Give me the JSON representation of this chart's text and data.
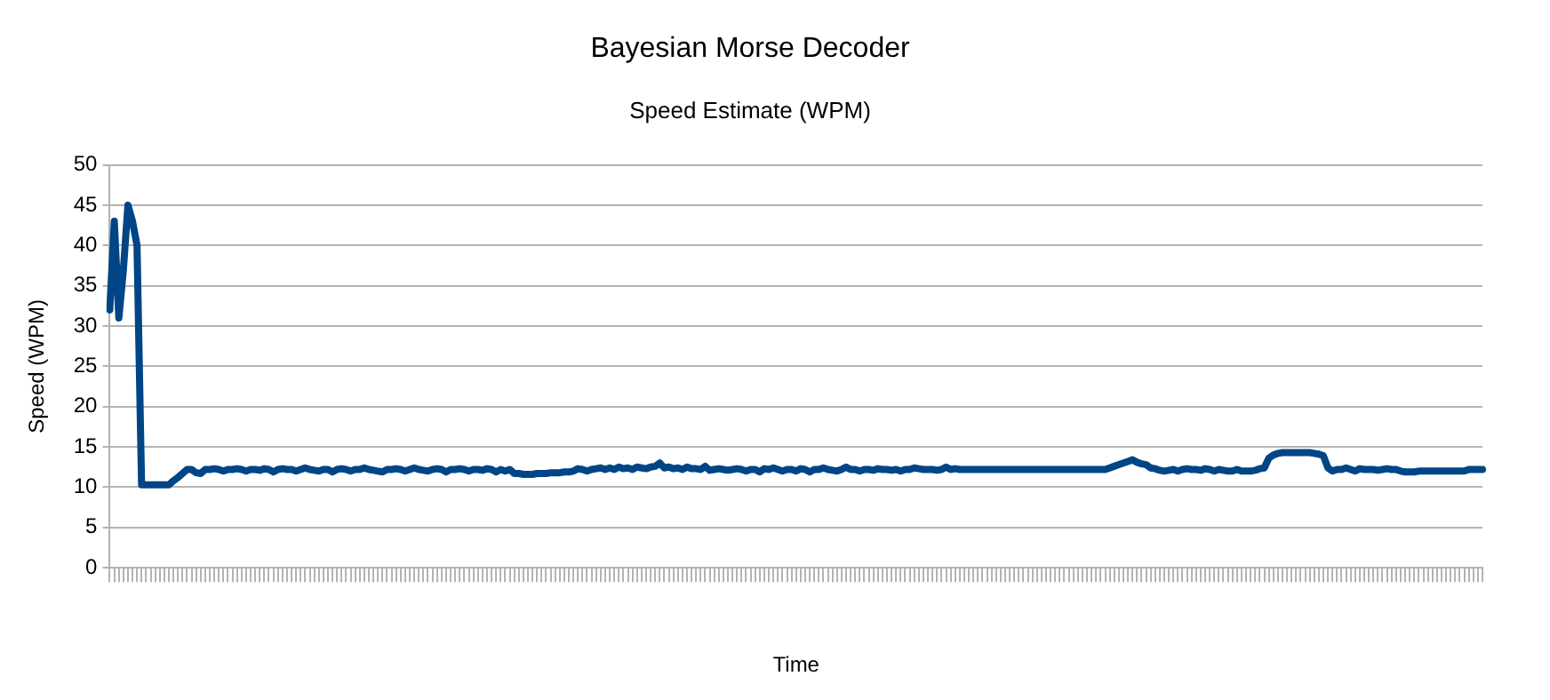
{
  "chart_data": {
    "type": "line",
    "title": "Bayesian Morse Decoder",
    "subtitle": "Speed Estimate (WPM)",
    "xlabel": "Time",
    "ylabel": "Speed (WPM)",
    "categories": [
      null,
      null,
      null,
      null,
      null,
      null,
      null,
      null,
      null,
      null,
      null,
      null,
      null,
      null,
      null,
      null,
      null,
      null,
      null,
      null,
      null,
      null,
      null,
      null,
      null,
      null,
      null,
      null,
      null,
      null,
      null,
      null,
      null,
      null,
      null,
      null,
      null,
      null,
      null,
      null,
      null,
      null,
      null,
      null,
      null,
      null,
      null,
      null,
      null,
      null,
      null,
      null,
      null,
      null,
      null,
      null,
      null,
      null,
      null,
      null,
      null,
      null,
      null,
      null,
      null,
      null,
      null,
      null,
      null,
      null,
      null,
      null,
      null,
      null,
      null,
      null,
      null,
      null,
      null,
      null,
      null,
      null,
      null,
      null,
      null,
      null,
      null,
      null,
      null,
      null,
      null,
      null,
      null,
      null,
      null,
      null,
      null,
      null,
      null,
      null,
      null,
      null,
      null,
      null,
      null,
      null,
      null,
      null,
      null,
      null,
      null,
      null,
      null,
      null,
      null,
      null,
      null,
      null,
      null,
      null,
      null,
      null,
      null,
      null,
      null,
      null,
      null,
      null,
      null,
      null,
      null,
      null,
      null,
      null,
      null,
      null,
      null,
      null,
      null,
      null,
      null,
      null,
      null,
      null,
      null,
      null,
      null,
      null,
      null,
      null,
      null,
      null,
      null,
      null,
      null,
      null,
      null,
      null,
      null,
      null,
      null,
      null,
      null,
      null,
      null,
      null,
      null,
      null,
      null,
      null,
      null,
      null,
      null,
      null,
      null,
      null,
      null,
      null,
      null,
      null,
      null,
      null,
      null,
      null,
      null,
      null,
      null,
      null,
      null,
      null,
      null,
      null,
      null,
      null,
      null,
      null,
      null,
      null,
      null,
      null,
      null,
      null,
      null,
      null,
      null,
      null,
      null,
      null,
      null,
      null,
      null,
      null,
      null,
      null,
      null,
      null,
      null,
      null,
      null,
      null,
      null,
      null,
      null,
      null,
      null,
      null,
      null,
      null,
      null,
      null,
      null,
      null,
      null,
      null,
      null,
      null,
      null,
      null,
      null,
      null,
      null,
      null,
      null,
      null,
      null,
      null,
      null,
      null,
      null,
      null,
      null,
      null,
      null,
      null,
      null,
      null,
      null,
      null,
      null,
      null,
      null,
      null,
      null,
      null,
      null,
      null,
      null,
      null,
      null,
      null,
      null,
      null,
      null,
      null,
      null,
      null,
      null,
      null,
      null,
      null,
      null,
      null,
      null,
      null,
      null,
      null,
      null,
      null,
      null,
      null,
      null,
      null,
      null,
      null,
      null,
      null,
      null,
      null,
      null,
      null,
      null,
      null,
      null
    ],
    "series": [
      {
        "color": "#004586",
        "values": [
          32,
          43,
          31,
          37,
          45,
          43,
          40,
          10.3,
          10.3,
          10.3,
          10.3,
          10.3,
          10.3,
          10.3,
          10.8,
          11.2,
          11.7,
          12.2,
          12.2,
          11.8,
          11.7,
          12.2,
          12.2,
          12.3,
          12.2,
          12,
          12.2,
          12.2,
          12.3,
          12.2,
          12,
          12.2,
          12.2,
          12.1,
          12.3,
          12.2,
          11.9,
          12.2,
          12.3,
          12.2,
          12.2,
          12,
          12.2,
          12.4,
          12.2,
          12.1,
          12,
          12.2,
          12.2,
          11.9,
          12.2,
          12.3,
          12.2,
          12,
          12.2,
          12.2,
          12.4,
          12.2,
          12.1,
          12,
          11.9,
          12.2,
          12.2,
          12.3,
          12.2,
          12,
          12.2,
          12.4,
          12.2,
          12.1,
          12,
          12.2,
          12.3,
          12.2,
          11.9,
          12.2,
          12.2,
          12.3,
          12.2,
          12,
          12.2,
          12.2,
          12.1,
          12.3,
          12.2,
          11.9,
          12.2,
          12,
          12.2,
          11.7,
          11.7,
          11.6,
          11.6,
          11.6,
          11.7,
          11.7,
          11.7,
          11.8,
          11.8,
          11.8,
          11.9,
          11.9,
          12,
          12.3,
          12.2,
          12,
          12.2,
          12.3,
          12.4,
          12.2,
          12.4,
          12.2,
          12.5,
          12.3,
          12.4,
          12.2,
          12.5,
          12.4,
          12.3,
          12.5,
          12.6,
          13,
          12.4,
          12.5,
          12.3,
          12.4,
          12.2,
          12.5,
          12.3,
          12.3,
          12.2,
          12.6,
          12.1,
          12.2,
          12.3,
          12.2,
          12.1,
          12.2,
          12.3,
          12.2,
          12,
          12.2,
          12.2,
          11.9,
          12.3,
          12.2,
          12.4,
          12.2,
          12,
          12.2,
          12.2,
          12,
          12.3,
          12.2,
          11.9,
          12.2,
          12.2,
          12.4,
          12.2,
          12.1,
          12,
          12.2,
          12.5,
          12.2,
          12.2,
          12,
          12.2,
          12.2,
          12.1,
          12.3,
          12.2,
          12.2,
          12.1,
          12.2,
          12,
          12.2,
          12.2,
          12.4,
          12.3,
          12.2,
          12.2,
          12.2,
          12.1,
          12.2,
          12.5,
          12.2,
          12.3,
          12.2,
          12.2,
          12.2,
          12.2,
          12.2,
          12.2,
          12.2,
          12.2,
          12.2,
          12.2,
          12.2,
          12.2,
          12.2,
          12.2,
          12.2,
          12.2,
          12.2,
          12.2,
          12.2,
          12.2,
          12.2,
          12.2,
          12.2,
          12.2,
          12.2,
          12.2,
          12.2,
          12.2,
          12.2,
          12.2,
          12.2,
          12.2,
          12.2,
          12.4,
          12.6,
          12.8,
          13,
          13.2,
          13.4,
          13.1,
          12.9,
          12.8,
          12.4,
          12.3,
          12.1,
          12,
          12.1,
          12.2,
          12,
          12.2,
          12.3,
          12.2,
          12.2,
          12.1,
          12.3,
          12.2,
          12,
          12.2,
          12.1,
          12,
          12,
          12.2,
          12,
          12,
          12,
          12.1,
          12.3,
          12.4,
          13.6,
          14,
          14.2,
          14.3,
          14.3,
          14.3,
          14.3,
          14.3,
          14.3,
          14.3,
          14.2,
          14.1,
          13.9,
          12.4,
          12,
          12.2,
          12.2,
          12.4,
          12.2,
          12,
          12.3,
          12.2,
          12.2,
          12.2,
          12.1,
          12.2,
          12.3,
          12.2,
          12.2,
          12,
          11.9,
          11.9,
          11.9,
          12,
          12,
          12,
          12,
          12,
          12,
          12,
          12,
          12,
          12,
          12,
          12.2,
          12.2,
          12.2,
          12.2
        ]
      }
    ],
    "ylim": [
      0,
      50
    ],
    "yticks": [
      0,
      5,
      10,
      15,
      20,
      25,
      30,
      35,
      40,
      45,
      50
    ],
    "grid": "y",
    "tick_labels": "y",
    "legend": false,
    "marker": "none",
    "line_style": "solid"
  }
}
